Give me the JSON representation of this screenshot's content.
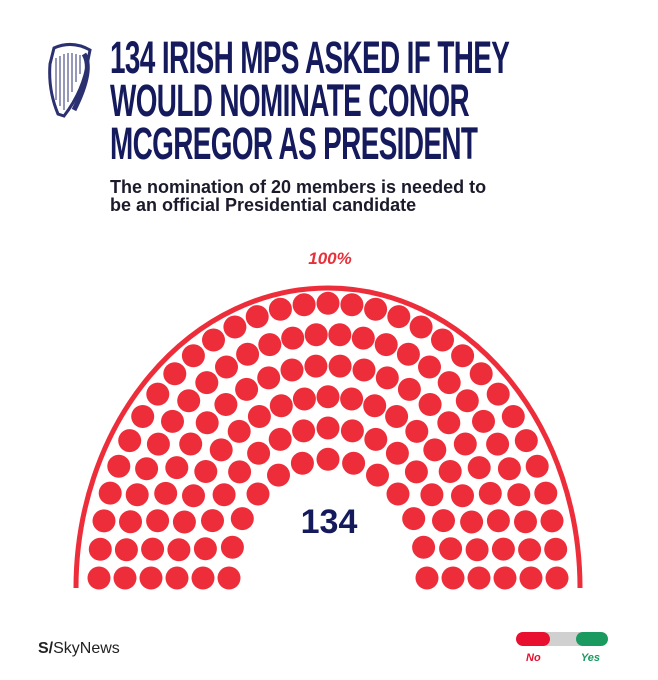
{
  "header": {
    "title": "134 IRISH MPS ASKED IF THEY WOULD NOMINATE CONOR MCGREGOR AS PRESIDENT",
    "title_lines": [
      "134 IRISH MPS ASKED IF THEY",
      "WOULD NOMINATE CONOR",
      "MCGREGOR AS PRESIDENT"
    ],
    "subtitle_lines": [
      "The nomination of 20 members is needed to",
      "be an official Presidential candidate"
    ],
    "logo": "harp-emblem"
  },
  "chart_data": {
    "type": "parliament",
    "total": 134,
    "total_label": "134",
    "percent_label": "100%",
    "series": [
      {
        "name": "No",
        "value": 134,
        "color": "#ee2d3a"
      },
      {
        "name": "Yes",
        "value": 0,
        "color": "#1a9a5e"
      }
    ],
    "rows": 6
  },
  "footer": {
    "source_prefix": "S/",
    "source_name": "SkyNews",
    "legend": {
      "no_label": "No",
      "yes_label": "Yes",
      "no_color": "#e8102e",
      "neutral_color": "#d0d0d0",
      "yes_color": "#1a9a5e"
    }
  }
}
